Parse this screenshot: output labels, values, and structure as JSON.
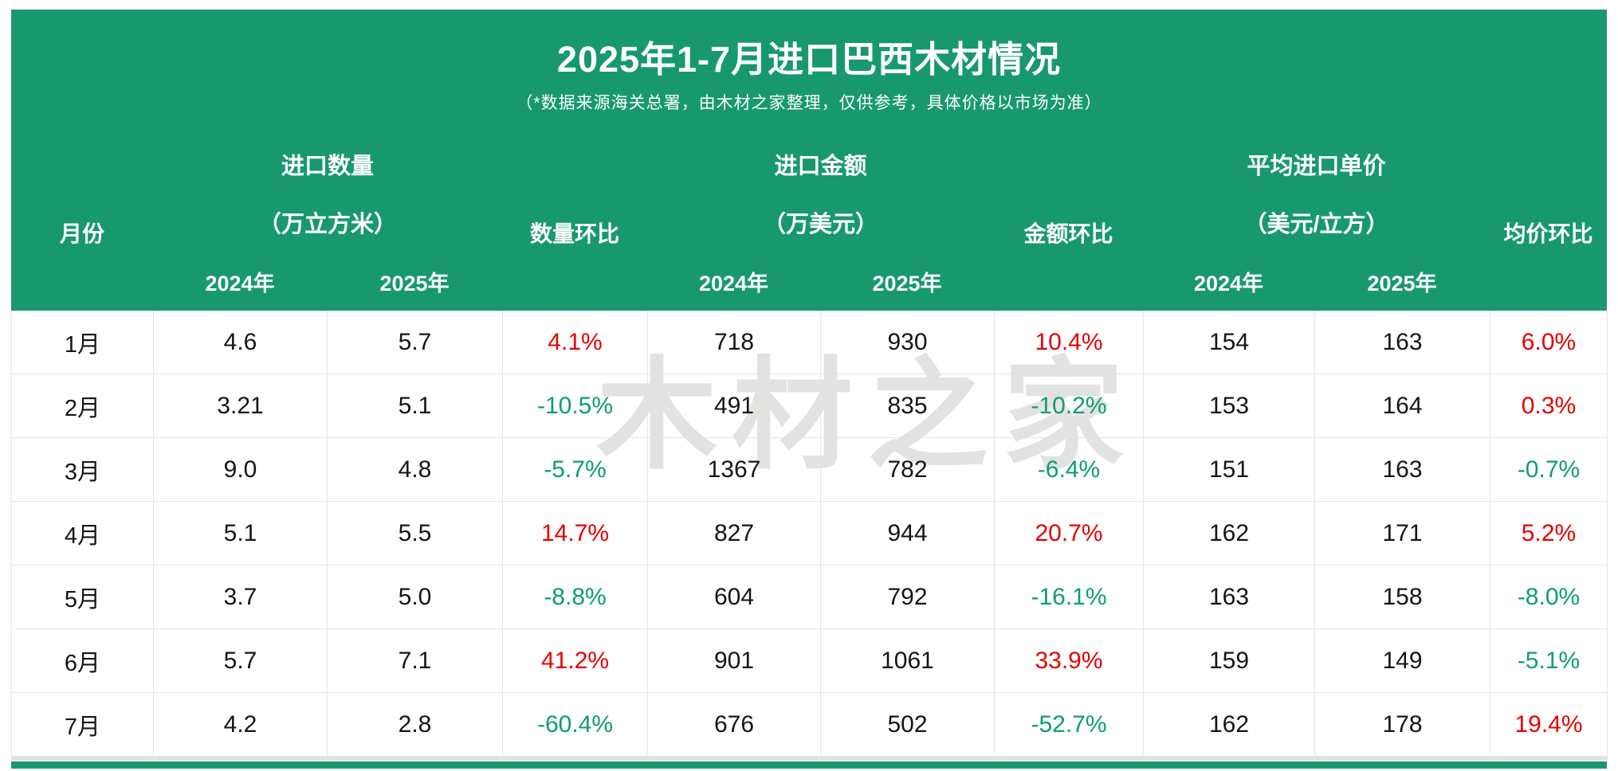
{
  "header": {
    "title": "2025年1-7月进口巴西木材情况",
    "subtitle": "（*数据来源海关总署，由木材之家整理，仅供参考，具体价格以市场为准）"
  },
  "watermark": {
    "text": "木材之家"
  },
  "colors": {
    "header_green": "#18996d",
    "positive_red": "#e60000",
    "negative_green": "#0d9d72",
    "watermark_gray": "#e2e2e0",
    "border_gray": "#e6e6e6"
  },
  "table": {
    "headers": {
      "month": "月份",
      "qty_mom": "数量环比",
      "amt_mom": "金额环比",
      "price_mom": "均价环比"
    },
    "groups": [
      {
        "name": "进口数量",
        "unit": "（万立方米）"
      },
      {
        "name": "进口金额",
        "unit": "（万美元）"
      },
      {
        "name": "平均进口单价",
        "unit": "（美元/立方）"
      }
    ],
    "year2024": "2024年",
    "year2025": "2025年",
    "rows": [
      {
        "month": "1月",
        "q24": "4.6",
        "q25": "5.7",
        "qmom": "4.1%",
        "a24": "718",
        "a25": "930",
        "amom": "10.4%",
        "p24": "154",
        "p25": "163",
        "pmom": "6.0%"
      },
      {
        "month": "2月",
        "q24": "3.21",
        "q25": "5.1",
        "qmom": "-10.5%",
        "a24": "491",
        "a25": "835",
        "amom": "-10.2%",
        "p24": "153",
        "p25": "164",
        "pmom": "0.3%"
      },
      {
        "month": "3月",
        "q24": "9.0",
        "q25": "4.8",
        "qmom": "-5.7%",
        "a24": "1367",
        "a25": "782",
        "amom": "-6.4%",
        "p24": "151",
        "p25": "163",
        "pmom": "-0.7%"
      },
      {
        "month": "4月",
        "q24": "5.1",
        "q25": "5.5",
        "qmom": "14.7%",
        "a24": "827",
        "a25": "944",
        "amom": "20.7%",
        "p24": "162",
        "p25": "171",
        "pmom": "5.2%"
      },
      {
        "month": "5月",
        "q24": "3.7",
        "q25": "5.0",
        "qmom": "-8.8%",
        "a24": "604",
        "a25": "792",
        "amom": "-16.1%",
        "p24": "163",
        "p25": "158",
        "pmom": "-8.0%"
      },
      {
        "month": "6月",
        "q24": "5.7",
        "q25": "7.1",
        "qmom": "41.2%",
        "a24": "901",
        "a25": "1061",
        "amom": "33.9%",
        "p24": "159",
        "p25": "149",
        "pmom": "-5.1%"
      },
      {
        "month": "7月",
        "q24": "4.2",
        "q25": "2.8",
        "qmom": "-60.4%",
        "a24": "676",
        "a25": "502",
        "amom": "-52.7%",
        "p24": "162",
        "p25": "178",
        "pmom": "19.4%"
      }
    ]
  },
  "chart_data": {
    "type": "table",
    "title": "2025年1-7月进口巴西木材情况",
    "subtitle": "（*数据来源海关总署，由木材之家整理，仅供参考，具体价格以市场为准）",
    "columns": [
      "月份",
      "进口数量2024年(万立方米)",
      "进口数量2025年(万立方米)",
      "数量环比",
      "进口金额2024年(万美元)",
      "进口金额2025年(万美元)",
      "金额环比",
      "平均进口单价2024年(美元/立方)",
      "平均进口单价2025年(美元/立方)",
      "均价环比"
    ],
    "rows": [
      [
        "1月",
        4.6,
        5.7,
        "4.1%",
        718,
        930,
        "10.4%",
        154,
        163,
        "6.0%"
      ],
      [
        "2月",
        3.21,
        5.1,
        "-10.5%",
        491,
        835,
        "-10.2%",
        153,
        164,
        "0.3%"
      ],
      [
        "3月",
        9.0,
        4.8,
        "-5.7%",
        1367,
        782,
        "-6.4%",
        151,
        163,
        "-0.7%"
      ],
      [
        "4月",
        5.1,
        5.5,
        "14.7%",
        827,
        944,
        "20.7%",
        162,
        171,
        "5.2%"
      ],
      [
        "5月",
        3.7,
        5.0,
        "-8.8%",
        604,
        792,
        "-16.1%",
        163,
        158,
        "-8.0%"
      ],
      [
        "6月",
        5.7,
        7.1,
        "41.2%",
        901,
        1061,
        "33.9%",
        159,
        149,
        "-5.1%"
      ],
      [
        "7月",
        4.2,
        2.8,
        "-60.4%",
        676,
        502,
        "-52.7%",
        162,
        178,
        "19.4%"
      ]
    ],
    "notes": "正值红色，负值绿色；legend/grid 不适用"
  }
}
